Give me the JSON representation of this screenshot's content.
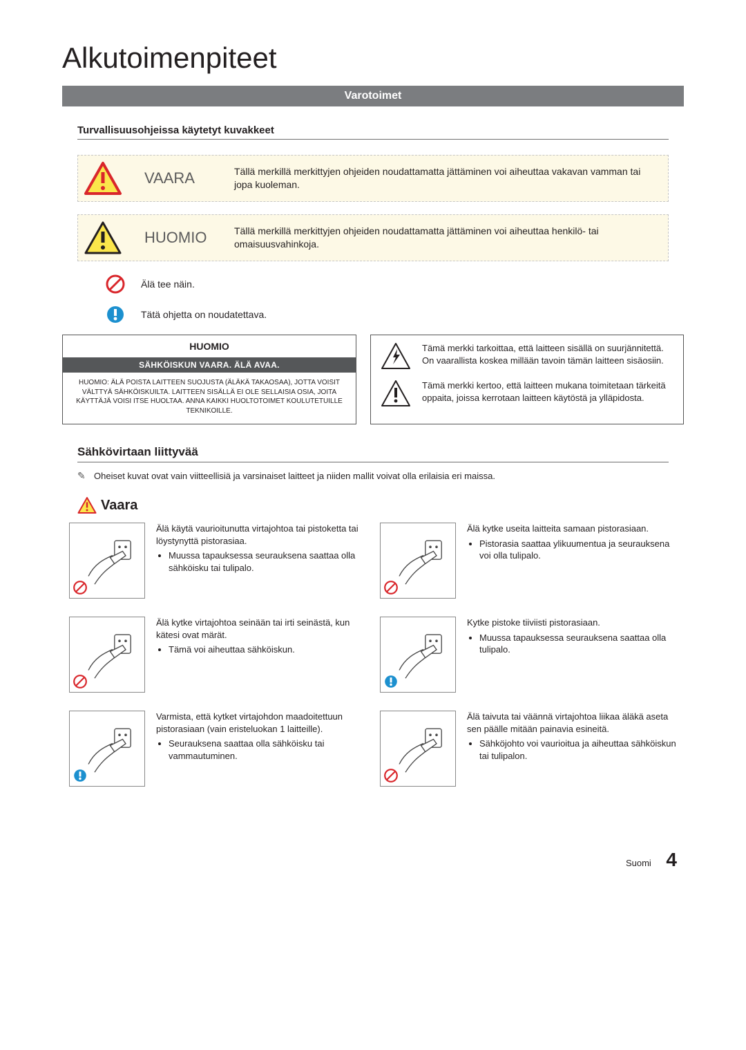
{
  "title": "Alkutoimenpiteet",
  "section_bar": "Varotoimet",
  "icons_heading": "Turvallisuusohjeissa käytetyt kuvakkeet",
  "danger": {
    "label": "VAARA",
    "desc": "Tällä merkillä merkittyjen ohjeiden noudattamatta jättäminen voi aiheuttaa vakavan vamman tai jopa kuoleman."
  },
  "caution": {
    "label": "HUOMIO",
    "desc": "Tällä merkillä merkittyjen ohjeiden noudattamatta jättäminen voi aiheuttaa henkilö- tai omaisuusvahinkoja."
  },
  "symbol_prohibit": "Älä tee näin.",
  "symbol_follow": "Tätä ohjetta on noudatettava.",
  "caution_box": {
    "head": "HUOMIO",
    "bar": "SÄHKÖISKUN VAARA. ÄLÄ AVAA.",
    "body": "HUOMIO: ÄLÄ POISTA LAITTEEN SUOJUSTA (ÄLÄKÄ TAKAOSAA), JOTTA VOISIT VÄLTTYÄ SÄHKÖISKUILTA. LAITTEEN SISÄLLÄ EI OLE SELLAISIA OSIA, JOITA KÄYTTÄJÄ VOISI ITSE HUOLTAA. ANNA KAIKKI HUOLTOTOIMET KOULUTETUILLE TEKNIKOILLE."
  },
  "explain_high_voltage": "Tämä merkki tarkoittaa, että laitteen sisällä on suurjännitettä. On vaarallista koskea millään tavoin tämän laitteen sisäosiin.",
  "explain_manual": "Tämä merkki kertoo, että laitteen mukana toimitetaan tärkeitä oppaita, joissa kerrotaan laitteen käytöstä ja ylläpidosta.",
  "power_heading": "Sähkövirtaan liittyvää",
  "note": "Oheiset kuvat ovat vain viitteellisiä ja varsinaiset laitteet ja niiden mallit voivat olla erilaisia eri maissa.",
  "danger_word": "Vaara",
  "cells": [
    {
      "head": "Älä käytä vaurioitunutta virtajohtoa tai pistoketta tai löystynyttä pistorasiaa.",
      "bullet": "Muussa tapauksessa seurauksena saattaa olla sähköisku tai tulipalo.",
      "marker": "prohibit"
    },
    {
      "head": "Älä kytke useita laitteita samaan pistorasiaan.",
      "bullet": "Pistorasia saattaa ylikuumentua ja seurauksena voi olla tulipalo.",
      "marker": "prohibit"
    },
    {
      "head": "Älä kytke virtajohtoa seinään tai irti seinästä, kun kätesi ovat märät.",
      "bullet": "Tämä voi aiheuttaa sähköiskun.",
      "marker": "prohibit"
    },
    {
      "head": "Kytke pistoke tiiviisti pistorasiaan.",
      "bullet": "Muussa tapauksessa seurauksena saattaa olla tulipalo.",
      "marker": "follow"
    },
    {
      "head": "Varmista, että kytket virtajohdon maadoitettuun pistorasiaan (vain eristeluokan 1 laitteille).",
      "bullet": "Seurauksena saattaa olla sähköisku tai vammautuminen.",
      "marker": "follow"
    },
    {
      "head": "Älä taivuta tai väännä virtajohtoa liikaa äläkä aseta sen päälle mitään painavia esineitä.",
      "bullet": "Sähköjohto voi vaurioitua ja aiheuttaa sähköiskun tai tulipalon.",
      "marker": "prohibit"
    }
  ],
  "footer_lang": "Suomi",
  "footer_page": "4",
  "colors": {
    "bar": "#7b7d80",
    "warn_bg": "#fdf9e6",
    "tri_red_stroke": "#d9262b",
    "tri_yellow_fill": "#fbe64b",
    "prohibit": "#d9262b",
    "follow": "#1c90cf"
  }
}
